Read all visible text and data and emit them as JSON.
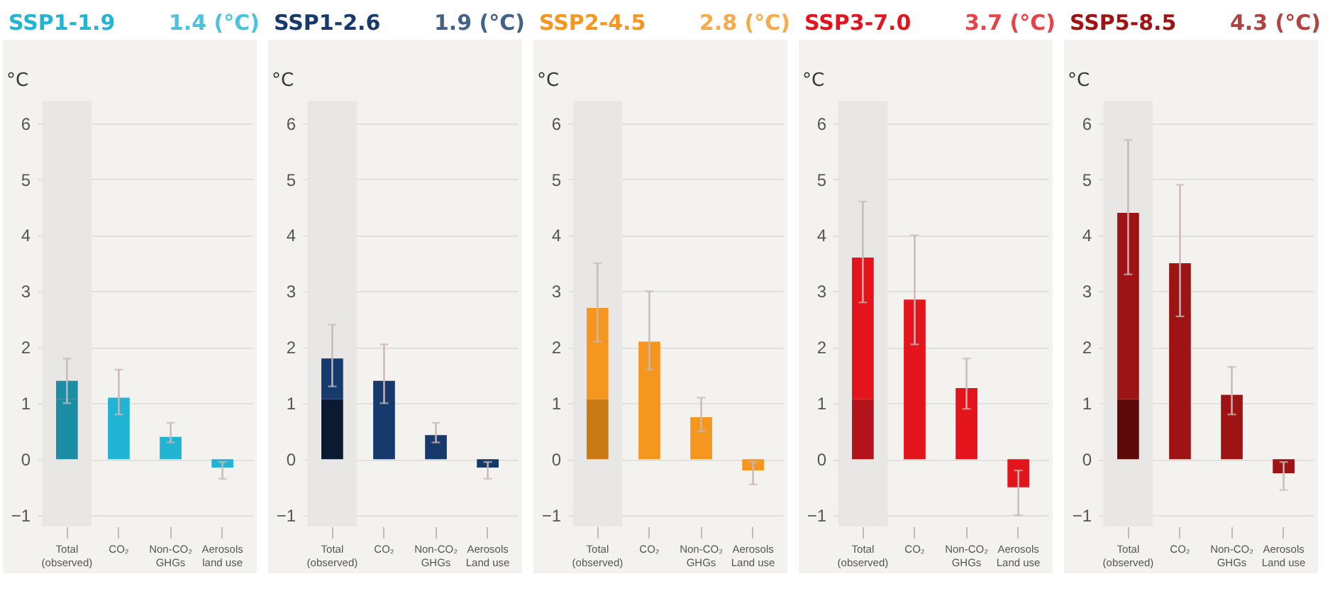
{
  "chart_data": [
    {
      "type": "bar",
      "title": "SSP1-1.9",
      "subtitle": "1.4 (°C)",
      "ylabel": "°C",
      "categories": [
        "Total (observed)",
        "CO₂",
        "Non-CO₂ GHGs",
        "Aerosols land use"
      ],
      "stacked": true,
      "ylim": [
        -1.2,
        6.4
      ],
      "yticks": [
        -1,
        0,
        1,
        2,
        3,
        4,
        5,
        6
      ],
      "grid": "y",
      "bands": [
        {
          "axis": "x",
          "from": "Total (observed)",
          "to": "Total (observed)",
          "color": "#e8e7e6"
        }
      ],
      "series": [
        {
          "color": "#1b8ea6",
          "values": [
            1.07,
            null,
            null,
            null
          ]
        },
        {
          "color": "#22b4d4",
          "colors": [
            "#1b8ea6",
            "#22b4d4",
            "#22b4d4",
            "#22b4d4"
          ],
          "values": [
            0.33,
            1.1,
            0.4,
            -0.15
          ],
          "errors": [
            [
              1.0,
              1.8
            ],
            [
              0.8,
              1.6
            ],
            [
              0.3,
              0.65
            ],
            [
              -0.35,
              -0.05
            ]
          ]
        }
      ]
    },
    {
      "type": "bar",
      "title": "SSP1-2.6",
      "subtitle": "1.9 (°C)",
      "ylabel": "°C",
      "categories": [
        "Total (observed)",
        "CO₂",
        "Non-CO₂ GHGs",
        "Aerosols Land use"
      ],
      "stacked": true,
      "ylim": [
        -1.2,
        6.4
      ],
      "yticks": [
        -1,
        0,
        1,
        2,
        3,
        4,
        5,
        6
      ],
      "grid": "y",
      "bands": [
        {
          "axis": "x",
          "from": "Total (observed)",
          "to": "Total (observed)",
          "color": "#e8e7e6"
        }
      ],
      "series": [
        {
          "color": "#0b1a33",
          "values": [
            1.07,
            null,
            null,
            null
          ]
        },
        {
          "color": "#163a6b",
          "values": [
            0.73,
            1.4,
            0.43,
            -0.15
          ],
          "errors": [
            [
              1.3,
              2.4
            ],
            [
              1.0,
              2.05
            ],
            [
              0.3,
              0.65
            ],
            [
              -0.35,
              -0.05
            ]
          ]
        }
      ]
    },
    {
      "type": "bar",
      "title": "SSP2-4.5",
      "subtitle": "2.8 (°C)",
      "ylabel": "°C",
      "categories": [
        "Total (observed)",
        "CO₂",
        "Non-CO₂ GHGs",
        "Aerosols Land use"
      ],
      "stacked": true,
      "ylim": [
        -1.2,
        6.4
      ],
      "yticks": [
        -1,
        0,
        1,
        2,
        3,
        4,
        5,
        6
      ],
      "grid": "y",
      "bands": [
        {
          "axis": "x",
          "from": "Total (observed)",
          "to": "Total (observed)",
          "color": "#e8e7e6"
        }
      ],
      "series": [
        {
          "color": "#c97a14",
          "values": [
            1.07,
            null,
            null,
            null
          ]
        },
        {
          "color": "#f5961f",
          "values": [
            1.63,
            2.1,
            0.75,
            -0.2
          ],
          "errors": [
            [
              2.1,
              3.5
            ],
            [
              1.6,
              3.0
            ],
            [
              0.5,
              1.1
            ],
            [
              -0.45,
              -0.05
            ]
          ]
        }
      ]
    },
    {
      "type": "bar",
      "title": "SSP3-7.0",
      "subtitle": "3.7 (°C)",
      "ylabel": "°C",
      "categories": [
        "Total (observed)",
        "CO₂",
        "Non-CO₂ GHGs",
        "Aerosols Land use"
      ],
      "stacked": true,
      "ylim": [
        -1.2,
        6.4
      ],
      "yticks": [
        -1,
        0,
        1,
        2,
        3,
        4,
        5,
        6
      ],
      "grid": "y",
      "bands": [
        {
          "axis": "x",
          "from": "Total (observed)",
          "to": "Total (observed)",
          "color": "#e8e7e6"
        }
      ],
      "series": [
        {
          "color": "#b3131a",
          "values": [
            1.07,
            null,
            null,
            null
          ]
        },
        {
          "color": "#e3141b",
          "values": [
            2.53,
            2.85,
            1.27,
            -0.5
          ],
          "errors": [
            [
              2.8,
              4.6
            ],
            [
              2.05,
              4.0
            ],
            [
              0.9,
              1.8
            ],
            [
              -1.0,
              -0.2
            ]
          ]
        }
      ]
    },
    {
      "type": "bar",
      "title": "SSP5-8.5",
      "subtitle": "4.3 (°C)",
      "ylabel": "°C",
      "categories": [
        "Total (observed)",
        "CO₂",
        "Non-CO₂ GHGs",
        "Aerosols Land use"
      ],
      "stacked": true,
      "ylim": [
        -1.2,
        6.4
      ],
      "yticks": [
        -1,
        0,
        1,
        2,
        3,
        4,
        5,
        6
      ],
      "grid": "y",
      "bands": [
        {
          "axis": "x",
          "from": "Total (observed)",
          "to": "Total (observed)",
          "color": "#e8e7e6"
        }
      ],
      "series": [
        {
          "color": "#5c0a0a",
          "values": [
            1.07,
            null,
            null,
            null
          ]
        },
        {
          "color": "#9e1414",
          "values": [
            3.33,
            3.5,
            1.15,
            -0.25
          ],
          "errors": [
            [
              3.3,
              5.7
            ],
            [
              2.55,
              4.9
            ],
            [
              0.8,
              1.65
            ],
            [
              -0.55,
              -0.05
            ]
          ]
        }
      ]
    }
  ]
}
